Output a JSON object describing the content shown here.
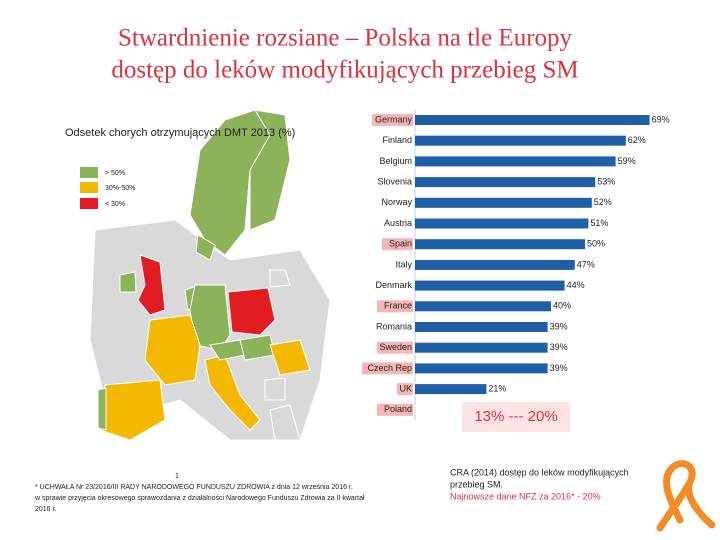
{
  "chart_data": {
    "type": "bar",
    "orientation": "horizontal",
    "title": [
      "Stwardnienie rozsiane – Polska na tle Europy",
      "dostęp do leków modyfikujących przebieg SM"
    ],
    "categories": [
      "Germany",
      "Finland",
      "Belgium",
      "Slovenia",
      "Norway",
      "Austria",
      "Spain",
      "Italy",
      "Denmark",
      "France",
      "Romania",
      "Sweden",
      "Czech Rep",
      "UK",
      "Poland"
    ],
    "values": [
      69,
      62,
      59,
      53,
      52,
      51,
      50,
      47,
      44,
      40,
      39,
      39,
      39,
      21,
      null
    ],
    "value_labels": [
      "69%",
      "62%",
      "59%",
      "53%",
      "52%",
      "51%",
      "50%",
      "47%",
      "44%",
      "40%",
      "39%",
      "39%",
      "39%",
      "21%",
      null
    ],
    "label_highlight": [
      true,
      false,
      false,
      false,
      false,
      false,
      true,
      false,
      false,
      true,
      false,
      true,
      true,
      true,
      true
    ],
    "color": "#1f5fa8",
    "xlim": [
      0,
      70
    ],
    "annotation": "13% --- 20%"
  },
  "map": {
    "title": "Odsetek chorych otrzymujących DMT 2013 (%)",
    "legend": [
      "> 50%",
      "30%-50%",
      "< 30%"
    ]
  },
  "footnote": {
    "number": "1",
    "lines": [
      "* UCHWAŁA Nr 23/2016/III RADY NARODOWEGO FUNDUSZU ZDROWIA z dnia 12 września 2016 r.",
      "w sprawie przyjęcia okresowego sprawozdania z działalności Narodowego Funduszu Zdrowia za II kwartał",
      "2016 r."
    ]
  },
  "source": {
    "lines": [
      "CRA (2014) dostęp do leków modyfikujących",
      "przebieg SM.",
      "Najnowsze dane NFZ za 2016* - 20%"
    ]
  }
}
